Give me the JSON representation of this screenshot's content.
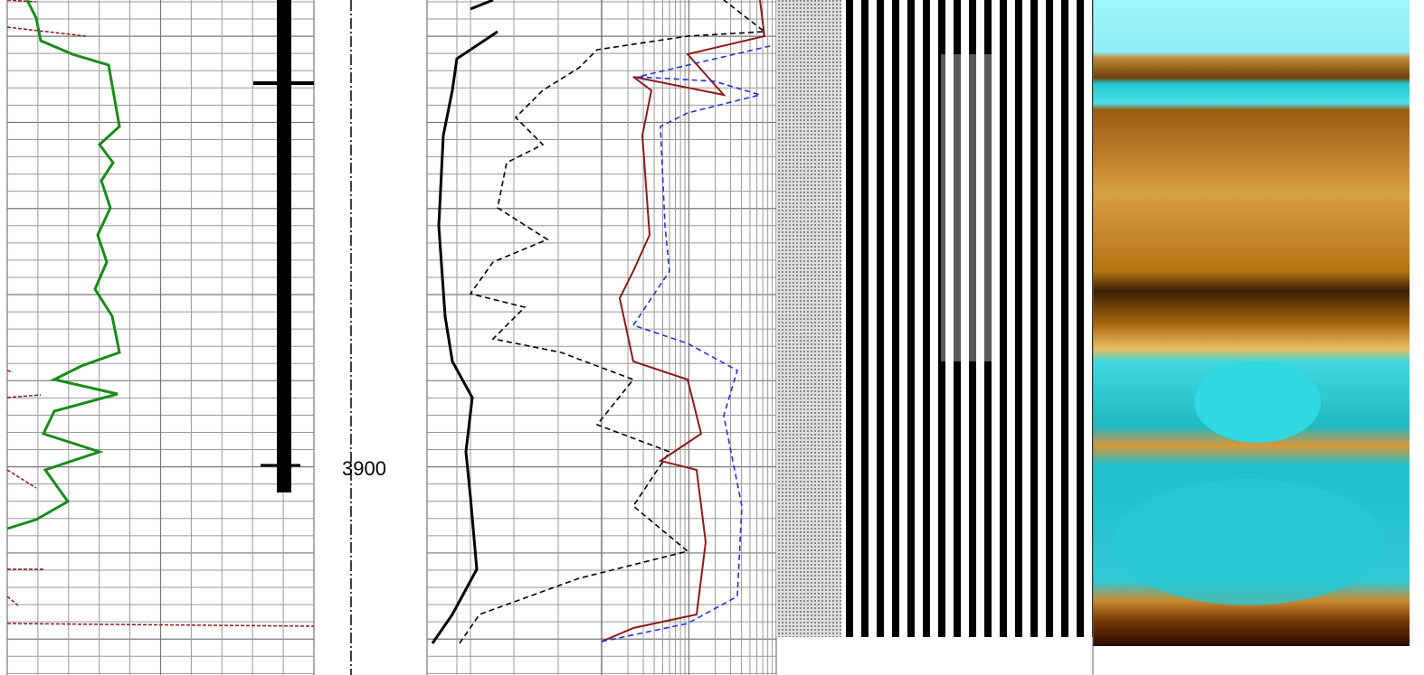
{
  "depth_track": {
    "label": "3900"
  }
}
